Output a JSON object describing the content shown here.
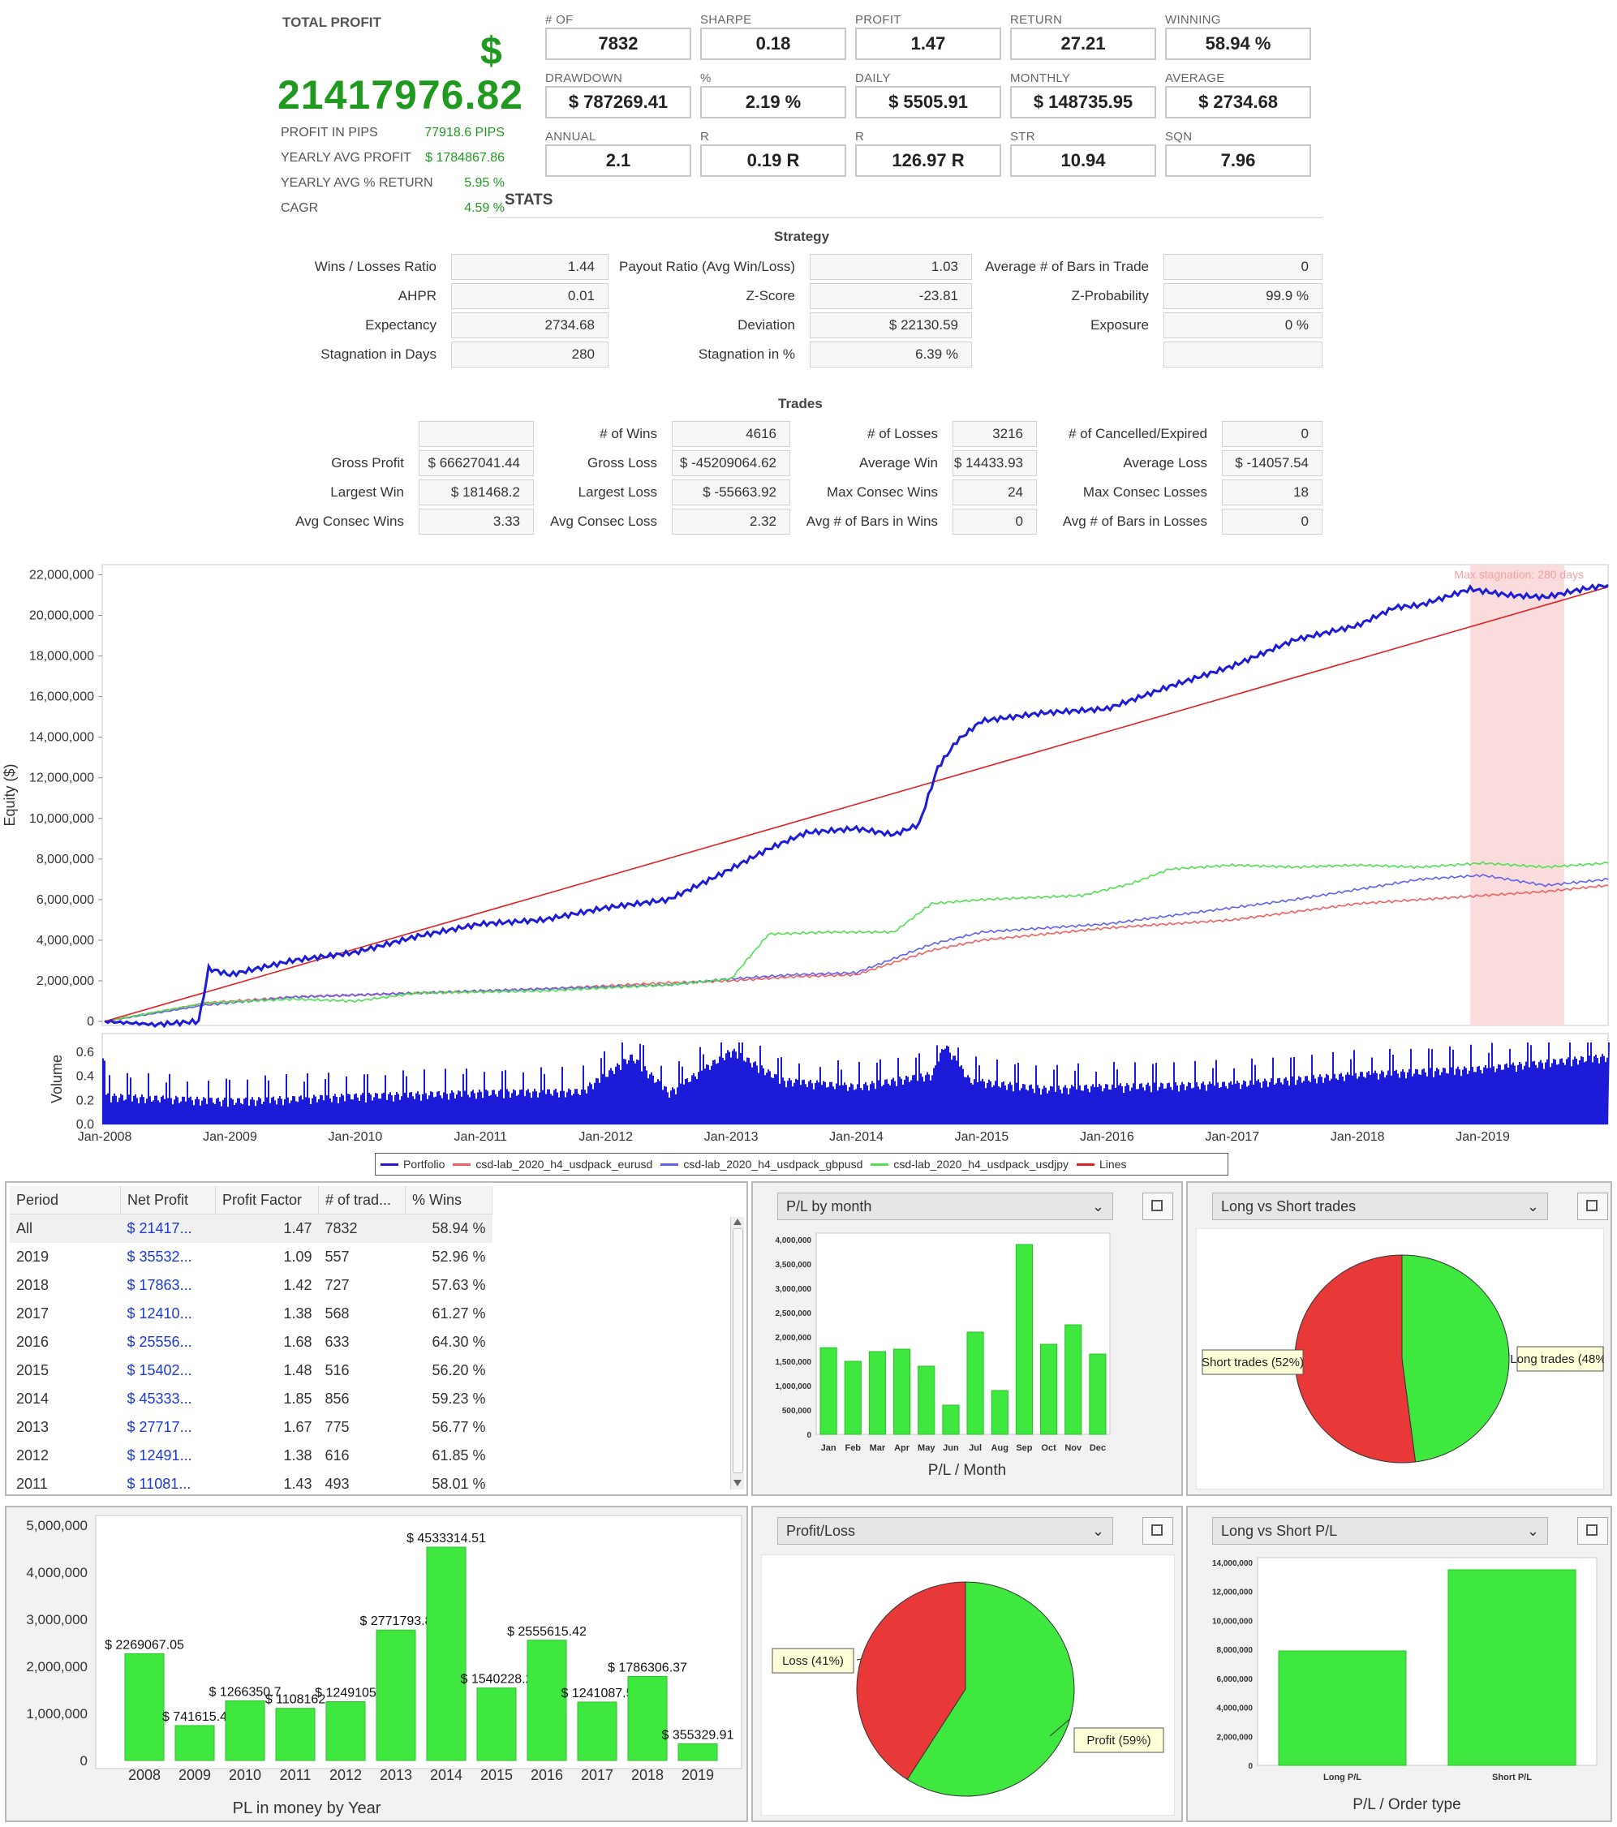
{
  "summary": {
    "total_profit_label": "TOTAL PROFIT",
    "currency_symbol": "$",
    "total_profit_value": "21417976.82",
    "left_stats": [
      {
        "label": "PROFIT IN PIPS",
        "value": "77918.6 PIPS"
      },
      {
        "label": "YEARLY AVG PROFIT",
        "value": "$ 1784867.86"
      },
      {
        "label": "YEARLY AVG % RETURN",
        "value": "5.95 %"
      },
      {
        "label": "CAGR",
        "value": "4.59 %"
      }
    ],
    "metrics": [
      {
        "label": "# OF TRADES",
        "value": "7832"
      },
      {
        "label": "SHARPE RATIO",
        "value": "0.18"
      },
      {
        "label": "PROFIT FACTOR",
        "value": "1.47"
      },
      {
        "label": "RETURN / DD RATIO",
        "value": "27.21"
      },
      {
        "label": "WINNING PERCENTAGE",
        "value": "58.94 %"
      },
      {
        "label": "DRAWDOWN",
        "value": "$ 787269.41"
      },
      {
        "label": "% DRAWDOWN",
        "value": "2.19 %"
      },
      {
        "label": "DAILY AVG PROFIT",
        "value": "$ 5505.91"
      },
      {
        "label": "MONTHLY AVG PROFIT",
        "value": "$ 148735.95"
      },
      {
        "label": "AVERAGE TRADE",
        "value": "$ 2734.68"
      },
      {
        "label": "ANNUAL % / MAX DD %",
        "value": "2.1"
      },
      {
        "label": "R EXPECTANCY",
        "value": "0.19 R"
      },
      {
        "label": "R EXPECTANCY SCORE",
        "value": "126.97 R"
      },
      {
        "label": "STR QUALITY NUMBER",
        "value": "10.94"
      },
      {
        "label": "SQN SCORE",
        "value": "7.96"
      }
    ]
  },
  "stats_title": "STATS",
  "strategy": {
    "title": "Strategy",
    "rows": [
      [
        {
          "label": "Wins / Losses Ratio",
          "value": "1.44"
        },
        {
          "label": "Payout Ratio (Avg Win/Loss)",
          "value": "1.03"
        },
        {
          "label": "Average # of Bars in Trade",
          "value": "0"
        }
      ],
      [
        {
          "label": "AHPR",
          "value": "0.01"
        },
        {
          "label": "Z-Score",
          "value": "-23.81"
        },
        {
          "label": "Z-Probability",
          "value": "99.9 %"
        }
      ],
      [
        {
          "label": "Expectancy",
          "value": "2734.68"
        },
        {
          "label": "Deviation",
          "value": "$ 22130.59"
        },
        {
          "label": "Exposure",
          "value": "0 %"
        }
      ],
      [
        {
          "label": "Stagnation in Days",
          "value": "280"
        },
        {
          "label": "Stagnation in %",
          "value": "6.39 %"
        },
        {
          "label": "",
          "value": ""
        }
      ]
    ]
  },
  "trades": {
    "title": "Trades",
    "rows": [
      [
        {
          "label": "",
          "value": ""
        },
        {
          "label": "# of Wins",
          "value": "4616"
        },
        {
          "label": "# of Losses",
          "value": "3216"
        },
        {
          "label": "# of Cancelled/Expired",
          "value": "0"
        }
      ],
      [
        {
          "label": "Gross Profit",
          "value": "$ 66627041.44"
        },
        {
          "label": "Gross Loss",
          "value": "$ -45209064.62"
        },
        {
          "label": "Average Win",
          "value": "$ 14433.93"
        },
        {
          "label": "Average Loss",
          "value": "$ -14057.54"
        }
      ],
      [
        {
          "label": "Largest Win",
          "value": "$ 181468.2"
        },
        {
          "label": "Largest Loss",
          "value": "$ -55663.92"
        },
        {
          "label": "Max Consec Wins",
          "value": "24"
        },
        {
          "label": "Max Consec Losses",
          "value": "18"
        }
      ],
      [
        {
          "label": "Avg Consec Wins",
          "value": "3.33"
        },
        {
          "label": "Avg Consec Loss",
          "value": "2.32"
        },
        {
          "label": "Avg # of Bars in Wins",
          "value": "0"
        },
        {
          "label": "Avg # of Bars in Losses",
          "value": "0"
        }
      ]
    ]
  },
  "chart_data": [
    {
      "type": "line",
      "ylabel": "Equity ($)",
      "ylim": [
        -200000,
        22500000
      ],
      "y_ticks": [
        "0",
        "2,000,000",
        "4,000,000",
        "6,000,000",
        "8,000,000",
        "10,000,000",
        "12,000,000",
        "14,000,000",
        "16,000,000",
        "18,000,000",
        "20,000,000",
        "22,000,000"
      ],
      "x_ticks": [
        "Jan-2008",
        "Jan-2009",
        "Jan-2010",
        "Jan-2011",
        "Jan-2012",
        "Jan-2013",
        "Jan-2014",
        "Jan-2015",
        "Jan-2016",
        "Jan-2017",
        "Jan-2018",
        "Jan-2019"
      ],
      "annotation": "Max stagnation: 280 days",
      "stagnation_range": [
        2018.9,
        2019.65
      ],
      "legend": [
        "Portfolio",
        "csd-lab_2020_h4_usdpack_eurusd",
        "csd-lab_2020_h4_usdpack_gbpusd",
        "csd-lab_2020_h4_usdpack_usdjpy",
        "Lines"
      ],
      "legend_colors": [
        "#1c1cd8",
        "#f06060",
        "#6060f0",
        "#50e050",
        "#e02020"
      ],
      "series": [
        {
          "name": "Portfolio",
          "color": "#1c1cd8",
          "points": [
            [
              2008.0,
              0
            ],
            [
              2008.4,
              -150000
            ],
            [
              2008.75,
              0
            ],
            [
              2008.83,
              2600000
            ],
            [
              2009.0,
              2300000
            ],
            [
              2009.5,
              3000000
            ],
            [
              2010.0,
              3400000
            ],
            [
              2010.5,
              4200000
            ],
            [
              2011.0,
              4800000
            ],
            [
              2011.5,
              5000000
            ],
            [
              2012.0,
              5600000
            ],
            [
              2012.5,
              6000000
            ],
            [
              2012.9,
              7200000
            ],
            [
              2013.3,
              8500000
            ],
            [
              2013.6,
              9300000
            ],
            [
              2014.0,
              9500000
            ],
            [
              2014.3,
              9200000
            ],
            [
              2014.5,
              9700000
            ],
            [
              2014.65,
              12500000
            ],
            [
              2014.8,
              13800000
            ],
            [
              2015.0,
              14800000
            ],
            [
              2015.5,
              15200000
            ],
            [
              2016.0,
              15400000
            ],
            [
              2016.5,
              16500000
            ],
            [
              2017.0,
              17500000
            ],
            [
              2017.5,
              18800000
            ],
            [
              2018.0,
              19500000
            ],
            [
              2018.3,
              20400000
            ],
            [
              2018.5,
              20500000
            ],
            [
              2018.9,
              21300000
            ],
            [
              2019.2,
              21000000
            ],
            [
              2019.5,
              20900000
            ],
            [
              2019.8,
              21300000
            ],
            [
              2020.0,
              21500000
            ]
          ]
        },
        {
          "name": "csd-lab_2020_h4_usdpack_eurusd",
          "color": "#f06060",
          "points": [
            [
              2008.0,
              0
            ],
            [
              2008.8,
              900000
            ],
            [
              2009.5,
              1200000
            ],
            [
              2010.5,
              1400000
            ],
            [
              2011.5,
              1600000
            ],
            [
              2012.5,
              1900000
            ],
            [
              2013.0,
              2000000
            ],
            [
              2013.5,
              2200000
            ],
            [
              2014.0,
              2300000
            ],
            [
              2014.6,
              3500000
            ],
            [
              2015.0,
              4000000
            ],
            [
              2015.5,
              4300000
            ],
            [
              2016.0,
              4600000
            ],
            [
              2016.5,
              4800000
            ],
            [
              2017.0,
              5000000
            ],
            [
              2017.5,
              5400000
            ],
            [
              2018.0,
              5800000
            ],
            [
              2018.5,
              6000000
            ],
            [
              2019.0,
              6200000
            ],
            [
              2019.5,
              6400000
            ],
            [
              2020.0,
              6700000
            ]
          ]
        },
        {
          "name": "csd-lab_2020_h4_usdpack_gbpusd",
          "color": "#6060f0",
          "points": [
            [
              2008.0,
              0
            ],
            [
              2008.8,
              800000
            ],
            [
              2009.5,
              1200000
            ],
            [
              2010.5,
              1400000
            ],
            [
              2011.5,
              1600000
            ],
            [
              2012.5,
              1800000
            ],
            [
              2013.0,
              2100000
            ],
            [
              2013.5,
              2300000
            ],
            [
              2014.0,
              2400000
            ],
            [
              2014.6,
              3800000
            ],
            [
              2015.0,
              4400000
            ],
            [
              2015.5,
              4600000
            ],
            [
              2016.0,
              4800000
            ],
            [
              2016.5,
              5200000
            ],
            [
              2017.0,
              5600000
            ],
            [
              2017.5,
              6000000
            ],
            [
              2018.0,
              6500000
            ],
            [
              2018.5,
              7000000
            ],
            [
              2019.0,
              7200000
            ],
            [
              2019.5,
              6700000
            ],
            [
              2020.0,
              7000000
            ]
          ]
        },
        {
          "name": "csd-lab_2020_h4_usdpack_usdjpy",
          "color": "#50e050",
          "points": [
            [
              2008.0,
              0
            ],
            [
              2008.8,
              900000
            ],
            [
              2009.5,
              1100000
            ],
            [
              2010.0,
              1000000
            ],
            [
              2010.5,
              1400000
            ],
            [
              2011.5,
              1500000
            ],
            [
              2012.5,
              1800000
            ],
            [
              2013.0,
              2100000
            ],
            [
              2013.3,
              4300000
            ],
            [
              2013.8,
              4400000
            ],
            [
              2014.3,
              4400000
            ],
            [
              2014.6,
              5800000
            ],
            [
              2015.0,
              6000000
            ],
            [
              2015.8,
              6200000
            ],
            [
              2016.2,
              6800000
            ],
            [
              2016.5,
              7500000
            ],
            [
              2017.0,
              7700000
            ],
            [
              2017.5,
              7600000
            ],
            [
              2018.0,
              7700000
            ],
            [
              2018.5,
              7600000
            ],
            [
              2019.0,
              7800000
            ],
            [
              2019.5,
              7600000
            ],
            [
              2020.0,
              7800000
            ]
          ]
        },
        {
          "name": "Lines",
          "color": "#e02020",
          "points": [
            [
              2008.0,
              0
            ],
            [
              2020.0,
              21400000
            ]
          ]
        }
      ]
    },
    {
      "type": "bar",
      "ylabel": "Volume",
      "ylim": [
        0,
        0.7
      ],
      "y_ticks": [
        "0.0",
        "0.2",
        "0.4",
        "0.6"
      ],
      "x_ticks": [
        "Jan-2008",
        "Jan-2009",
        "Jan-2010",
        "Jan-2011",
        "Jan-2012",
        "Jan-2013",
        "Jan-2014",
        "Jan-2015",
        "Jan-2016",
        "Jan-2017",
        "Jan-2018",
        "Jan-2019"
      ],
      "profile": [
        [
          2008.0,
          0.22
        ],
        [
          2009.0,
          0.18
        ],
        [
          2010.0,
          0.22
        ],
        [
          2011.0,
          0.25
        ],
        [
          2011.8,
          0.26
        ],
        [
          2012.2,
          0.55
        ],
        [
          2012.5,
          0.25
        ],
        [
          2013.0,
          0.6
        ],
        [
          2013.4,
          0.35
        ],
        [
          2014.0,
          0.3
        ],
        [
          2014.6,
          0.4
        ],
        [
          2014.7,
          0.65
        ],
        [
          2014.9,
          0.35
        ],
        [
          2015.5,
          0.28
        ],
        [
          2016.0,
          0.3
        ],
        [
          2017.0,
          0.32
        ],
        [
          2018.0,
          0.4
        ],
        [
          2019.0,
          0.45
        ],
        [
          2020.0,
          0.55
        ]
      ]
    },
    {
      "type": "bar",
      "title": "P/L / Month",
      "categories": [
        "Jan",
        "Feb",
        "Mar",
        "Apr",
        "May",
        "Jun",
        "Jul",
        "Aug",
        "Sep",
        "Oct",
        "Nov",
        "Dec"
      ],
      "values": [
        1780000,
        1500000,
        1700000,
        1750000,
        1400000,
        600000,
        2100000,
        900000,
        3900000,
        1850000,
        2250000,
        1650000
      ],
      "ylim": [
        0,
        4000000
      ],
      "y_ticks": [
        "0",
        "500,000",
        "1,000,000",
        "1,500,000",
        "2,000,000",
        "2,500,000",
        "3,000,000",
        "3,500,000",
        "4,000,000"
      ]
    },
    {
      "type": "pie",
      "labels": [
        "Long trades (48%)",
        "Short trades (52%)"
      ],
      "values": [
        48,
        52
      ],
      "colors": [
        "#3ee83e",
        "#e83838"
      ]
    },
    {
      "type": "bar",
      "xlabel": "PL in money by Year",
      "categories": [
        "2008",
        "2009",
        "2010",
        "2011",
        "2012",
        "2013",
        "2014",
        "2015",
        "2016",
        "2017",
        "2018",
        "2019"
      ],
      "values": [
        2269067.05,
        741615.4,
        1266350.7,
        1108162,
        1249105,
        2771793.8,
        4533314.51,
        1540228.2,
        2555615.42,
        1241087.5,
        1786306.37,
        355329.91
      ],
      "data_labels": [
        "$ 2269067.05",
        "$ 741615.4",
        "$ 1266350.7",
        "$ 1108162",
        "$ 1249105",
        "$ 2771793.8",
        "$ 4533314.51",
        "$ 1540228.2",
        "$ 2555615.42",
        "$ 1241087.5",
        "$ 1786306.37",
        "$ 355329.91"
      ],
      "ylim": [
        0,
        5000000
      ],
      "y_ticks": [
        "0",
        "1,000,000",
        "2,000,000",
        "3,000,000",
        "4,000,000",
        "5,000,000"
      ]
    },
    {
      "type": "pie",
      "labels": [
        "Profit (59%)",
        "Loss (41%)"
      ],
      "values": [
        59,
        41
      ],
      "colors": [
        "#3ee83e",
        "#e83838"
      ]
    },
    {
      "type": "bar",
      "title": "P/L / Order type",
      "categories": [
        "Long P/L",
        "Short P/L"
      ],
      "values": [
        7900000,
        13500000
      ],
      "ylim": [
        0,
        14000000
      ],
      "y_ticks": [
        "0",
        "2,000,000",
        "4,000,000",
        "6,000,000",
        "8,000,000",
        "10,000,000",
        "12,000,000",
        "14,000,000"
      ]
    }
  ],
  "period_table": {
    "headers": [
      "Period",
      "Net Profit",
      "Profit Factor",
      "# of trad...",
      "% Wins"
    ],
    "rows": [
      [
        "All",
        "$ 21417...",
        "1.47",
        "7832",
        "58.94 %"
      ],
      [
        "2019",
        "$ 35532...",
        "1.09",
        "557",
        "52.96 %"
      ],
      [
        "2018",
        "$ 17863...",
        "1.42",
        "727",
        "57.63 %"
      ],
      [
        "2017",
        "$ 12410...",
        "1.38",
        "568",
        "61.27 %"
      ],
      [
        "2016",
        "$ 25556...",
        "1.68",
        "633",
        "64.30 %"
      ],
      [
        "2015",
        "$ 15402...",
        "1.48",
        "516",
        "56.20 %"
      ],
      [
        "2014",
        "$ 45333...",
        "1.85",
        "856",
        "59.23 %"
      ],
      [
        "2013",
        "$ 27717...",
        "1.67",
        "775",
        "56.77 %"
      ],
      [
        "2012",
        "$ 12491...",
        "1.38",
        "616",
        "61.85 %"
      ],
      [
        "2011",
        "$ 11081...",
        "1.43",
        "493",
        "58.01 %"
      ]
    ]
  },
  "panels": {
    "monthly_select": "P/L by month",
    "long_short_trades_select": "Long vs Short trades",
    "profit_loss_select": "Profit/Loss",
    "long_short_pl_select": "Long vs Short P/L"
  },
  "colors": {
    "profit_green": "#1f9a1f",
    "bar_green": "#3ee83e",
    "pie_red": "#e83838",
    "link_blue": "#1a3ad8"
  }
}
